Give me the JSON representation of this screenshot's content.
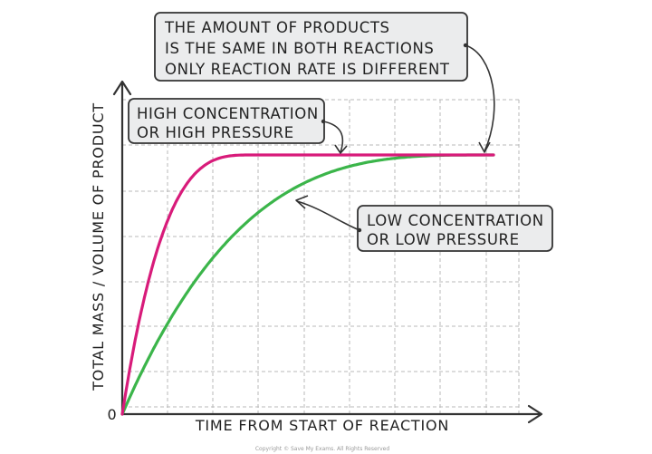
{
  "chart_data": {
    "type": "line",
    "xlabel": "TIME FROM START OF REACTION",
    "ylabel": "TOTAL MASS / VOLUME OF PRODUCT",
    "origin_label": "0",
    "grid": true,
    "series": [
      {
        "name": "HIGH CONCENTRATION OR HIGH PRESSURE",
        "color": "#d81b7a",
        "x": [
          0,
          0.1,
          0.2,
          0.3,
          0.35,
          1.0
        ],
        "y": [
          0,
          0.62,
          0.89,
          0.98,
          1.0,
          1.0
        ]
      },
      {
        "name": "LOW CONCENTRATION OR LOW PRESSURE",
        "color": "#3bb54a",
        "x": [
          0,
          0.2,
          0.4,
          0.6,
          0.8,
          1.0
        ],
        "y": [
          0,
          0.54,
          0.79,
          0.91,
          0.97,
          1.0
        ]
      }
    ],
    "annotations": {
      "top": [
        "THE AMOUNT OF PRODUCTS",
        "IS THE SAME IN BOTH REACTIONS",
        "ONLY REACTION RATE IS DIFFERENT"
      ],
      "high": [
        "HIGH CONCENTRATION",
        "OR HIGH PRESSURE"
      ],
      "low": [
        "LOW CONCENTRATION",
        "OR LOW PRESSURE"
      ]
    },
    "copyright": "Copyright © Save My Exams. All Rights Reserved"
  }
}
